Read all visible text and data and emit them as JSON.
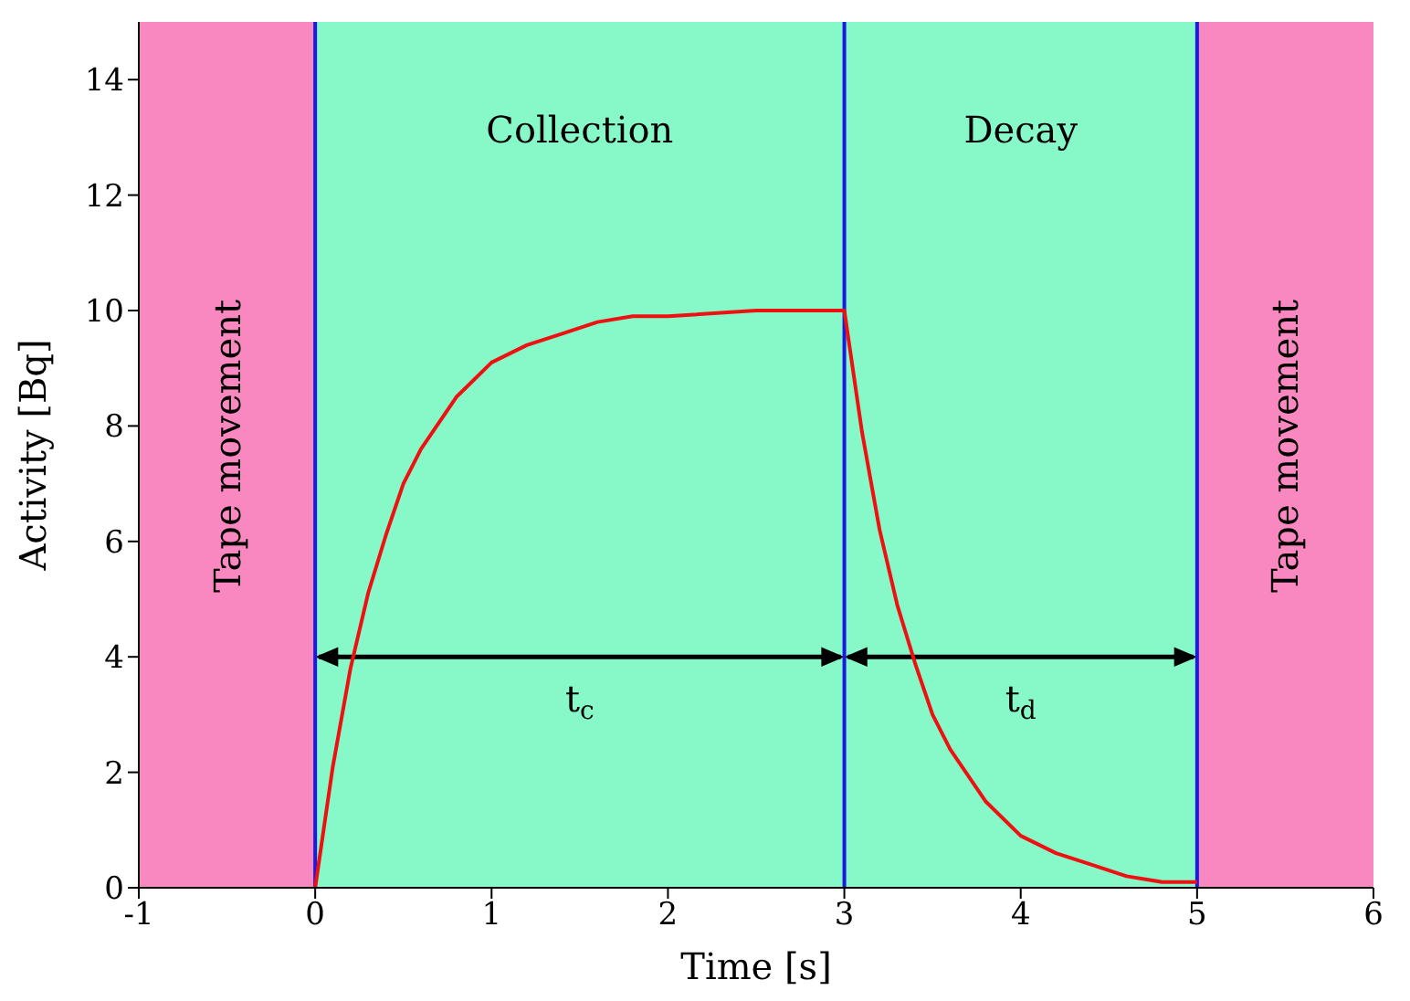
{
  "chart_data": {
    "type": "line",
    "xlabel": "Time [s]",
    "ylabel": "Activity [Bq]",
    "xlim": [
      -1,
      6
    ],
    "xticks": [
      -1,
      0,
      1,
      2,
      3,
      4,
      5,
      6
    ],
    "ylim": [
      0,
      15
    ],
    "yticks": [
      0,
      2,
      4,
      6,
      8,
      10,
      12,
      14
    ],
    "marker": "none",
    "line_style": "solid",
    "series": [
      {
        "color": "#ee1111",
        "x": [
          0,
          0.1,
          0.2,
          0.3,
          0.4,
          0.5,
          0.6,
          0.8,
          1.0,
          1.2,
          1.4,
          1.6,
          1.8,
          2.0,
          2.5,
          3.0,
          3.0,
          3.1,
          3.2,
          3.3,
          3.4,
          3.5,
          3.6,
          3.8,
          4.0,
          4.2,
          4.4,
          4.6,
          4.8,
          5.0
        ],
        "values": [
          0,
          2.1,
          3.8,
          5.1,
          6.1,
          7.0,
          7.6,
          8.5,
          9.1,
          9.4,
          9.6,
          9.8,
          9.9,
          9.9,
          10.0,
          10.0,
          10.0,
          7.9,
          6.2,
          4.9,
          3.9,
          3.0,
          2.4,
          1.5,
          0.9,
          0.6,
          0.4,
          0.2,
          0.1,
          0.1
        ]
      }
    ],
    "bands": [
      {
        "axis": "x",
        "from": -1,
        "to": 0,
        "label": "Tape movement",
        "color": "#f987c0"
      },
      {
        "axis": "x",
        "from": 0,
        "to": 3,
        "label": "Collection",
        "color": "#87f8c8"
      },
      {
        "axis": "x",
        "from": 3,
        "to": 5,
        "label": "Decay",
        "color": "#87f8c8"
      },
      {
        "axis": "x",
        "from": 5,
        "to": 6,
        "label": "Tape movement",
        "color": "#f987c0"
      }
    ],
    "ref_lines": [
      {
        "axis": "x",
        "value": 0,
        "color": "#1a1ae0"
      },
      {
        "axis": "x",
        "value": 3,
        "color": "#1a1ae0"
      },
      {
        "axis": "x",
        "value": 5,
        "color": "#1a1ae0"
      }
    ],
    "annotations": [
      "t$_{c}$",
      "t$_{d}$"
    ]
  }
}
